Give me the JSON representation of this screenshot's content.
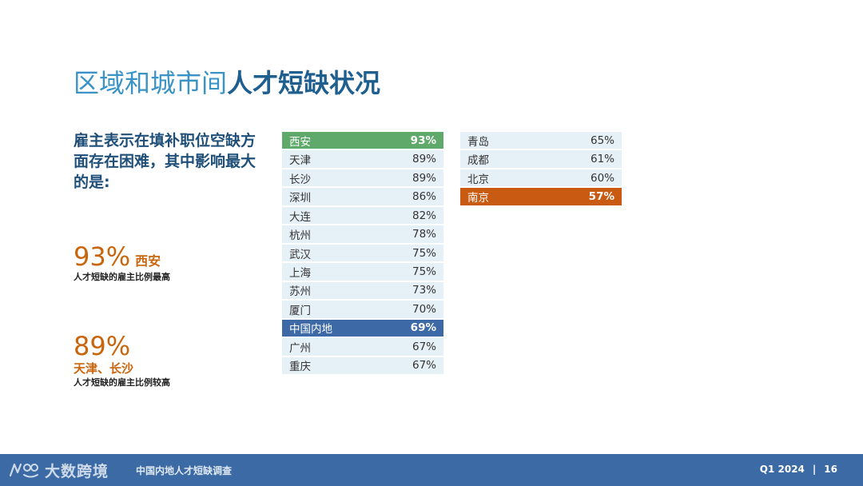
{
  "title": {
    "part1": "区域和城市间",
    "part2": "人才短缺状况"
  },
  "lead_text": "雇主表示在填补职位空缺方面存在困难，其中影响最大的是:",
  "highlights": [
    {
      "value": "93%",
      "city": "西安",
      "desc": "人才短缺的雇主比例最高"
    },
    {
      "value": "89%",
      "city": "天津、长沙",
      "desc": "人才短缺的雇主比例较高"
    }
  ],
  "chart_data": {
    "type": "table",
    "columns": [
      [
        {
          "city": "西安",
          "value": "93%",
          "highlight": "green"
        },
        {
          "city": "天津",
          "value": "89%"
        },
        {
          "city": "长沙",
          "value": "89%"
        },
        {
          "city": "深圳",
          "value": "86%"
        },
        {
          "city": "大连",
          "value": "82%"
        },
        {
          "city": "杭州",
          "value": "78%"
        },
        {
          "city": "武汉",
          "value": "75%"
        },
        {
          "city": "上海",
          "value": "75%"
        },
        {
          "city": "苏州",
          "value": "73%"
        },
        {
          "city": "厦门",
          "value": "70%"
        },
        {
          "city": "中国内地",
          "value": "69%",
          "highlight": "blue"
        },
        {
          "city": "广州",
          "value": "67%"
        },
        {
          "city": "重庆",
          "value": "67%"
        }
      ],
      [
        {
          "city": "青岛",
          "value": "65%"
        },
        {
          "city": "成都",
          "value": "61%"
        },
        {
          "city": "北京",
          "value": "60%"
        },
        {
          "city": "南京",
          "value": "57%",
          "highlight": "orange"
        }
      ]
    ],
    "colors": {
      "green": "#5fa96a",
      "blue": "#3d6aa6",
      "orange": "#c85a12",
      "row": "#e6f0f7"
    }
  },
  "footer": {
    "logo_text": "大数跨境",
    "survey": "中国内地人才短缺调查",
    "quarter": "Q1 2024",
    "separator": "|",
    "page": "16"
  }
}
